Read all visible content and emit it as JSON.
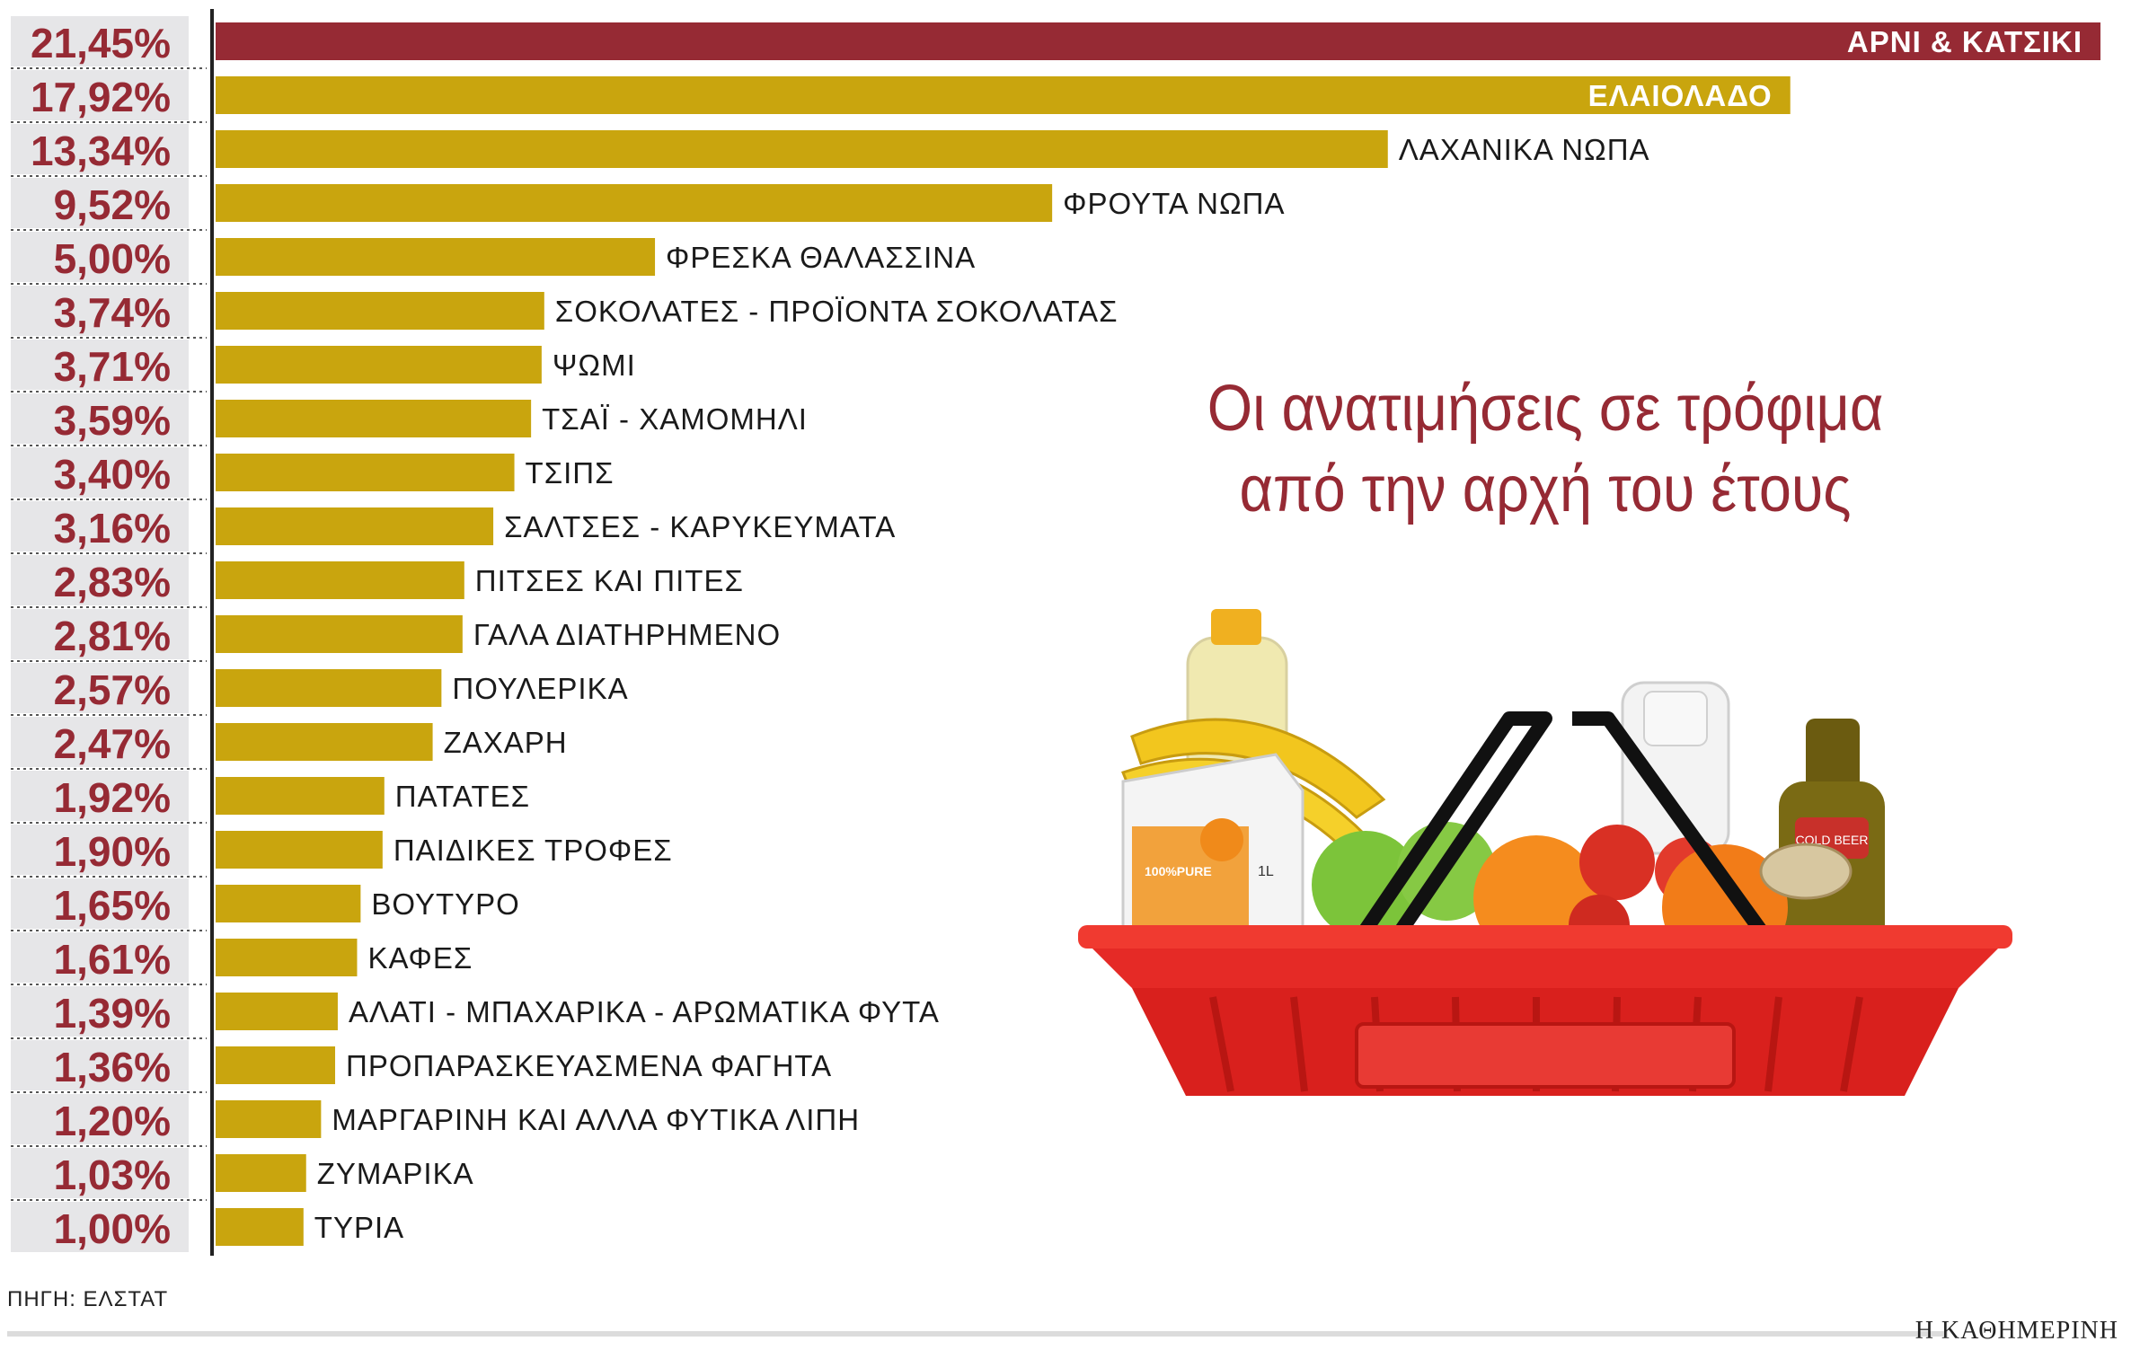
{
  "chart_data": {
    "type": "bar",
    "orientation": "horizontal",
    "categories": [
      "ΑΡΝΙ & ΚΑΤΣΙΚΙ",
      "ΕΛΑΙΟΛΑΔΟ",
      "ΛΑΧΑΝΙΚΑ ΝΩΠΑ",
      "ΦΡΟΥΤΑ ΝΩΠΑ",
      "ΦΡΕΣΚΑ ΘΑΛΑΣΣΙΝΑ",
      "ΣΟΚΟΛΑΤΕΣ - ΠΡΟΪΟΝΤΑ ΣΟΚΟΛΑΤΑΣ",
      "ΨΩΜΙ",
      "ΤΣΑΪ - ΧΑΜΟΜΗΛΙ",
      "ΤΣΙΠΣ",
      "ΣΑΛΤΣΕΣ - ΚΑΡΥΚΕΥΜΑΤΑ",
      "ΠΙΤΣΕΣ ΚΑΙ ΠΙΤΕΣ",
      "ΓΑΛΑ ΔΙΑΤΗΡΗΜΕΝΟ",
      "ΠΟΥΛΕΡΙΚΑ",
      "ΖΑΧΑΡΗ",
      "ΠΑΤΑΤΕΣ",
      "ΠΑΙΔΙΚΕΣ ΤΡΟΦΕΣ",
      "ΒΟΥΤΥΡΟ",
      "ΚΑΦΕΣ",
      "ΑΛΑΤΙ - ΜΠΑΧΑΡΙΚΑ - ΑΡΩΜΑΤΙΚΑ ΦΥΤΑ",
      "ΠΡΟΠΑΡΑΣΚΕΥΑΣΜΕΝΑ ΦΑΓΗΤΑ",
      "ΜΑΡΓΑΡΙΝΗ ΚΑΙ ΑΛΛΑ ΦΥΤΙΚΑ ΛΙΠΗ",
      "ΖΥΜΑΡΙΚΑ",
      "ΤΥΡΙΑ"
    ],
    "values": [
      21.45,
      17.92,
      13.34,
      9.52,
      5.0,
      3.74,
      3.71,
      3.59,
      3.4,
      3.16,
      2.83,
      2.81,
      2.57,
      2.47,
      1.92,
      1.9,
      1.65,
      1.61,
      1.39,
      1.36,
      1.2,
      1.03,
      1.0
    ],
    "value_labels": [
      "21,45%",
      "17,92%",
      "13,34%",
      "9,52%",
      "5,00%",
      "3,74%",
      "3,71%",
      "3,59%",
      "3,40%",
      "3,16%",
      "2,83%",
      "2,81%",
      "2,57%",
      "2,47%",
      "1,92%",
      "1,90%",
      "1,65%",
      "1,61%",
      "1,39%",
      "1,36%",
      "1,20%",
      "1,03%",
      "1,00%"
    ],
    "highlight_index": 0,
    "xlim": [
      0,
      21.45
    ],
    "grid": false,
    "colors": {
      "bar": "#c9a50e",
      "highlight_bar": "#962a34",
      "value_text": "#962a34",
      "label_bg": "#e6e6e8",
      "axis": "#222222"
    }
  },
  "title_lines": [
    "Οι ανατιμήσεις σε τρόφιμα",
    "από την αρχή του έτους"
  ],
  "source": "ΠΗΓΗ: ΕΛΣΤΑΤ",
  "publisher": "Η ΚΑΘΗΜΕΡΙΝΗ",
  "illustration": "shopping-basket-with-groceries"
}
